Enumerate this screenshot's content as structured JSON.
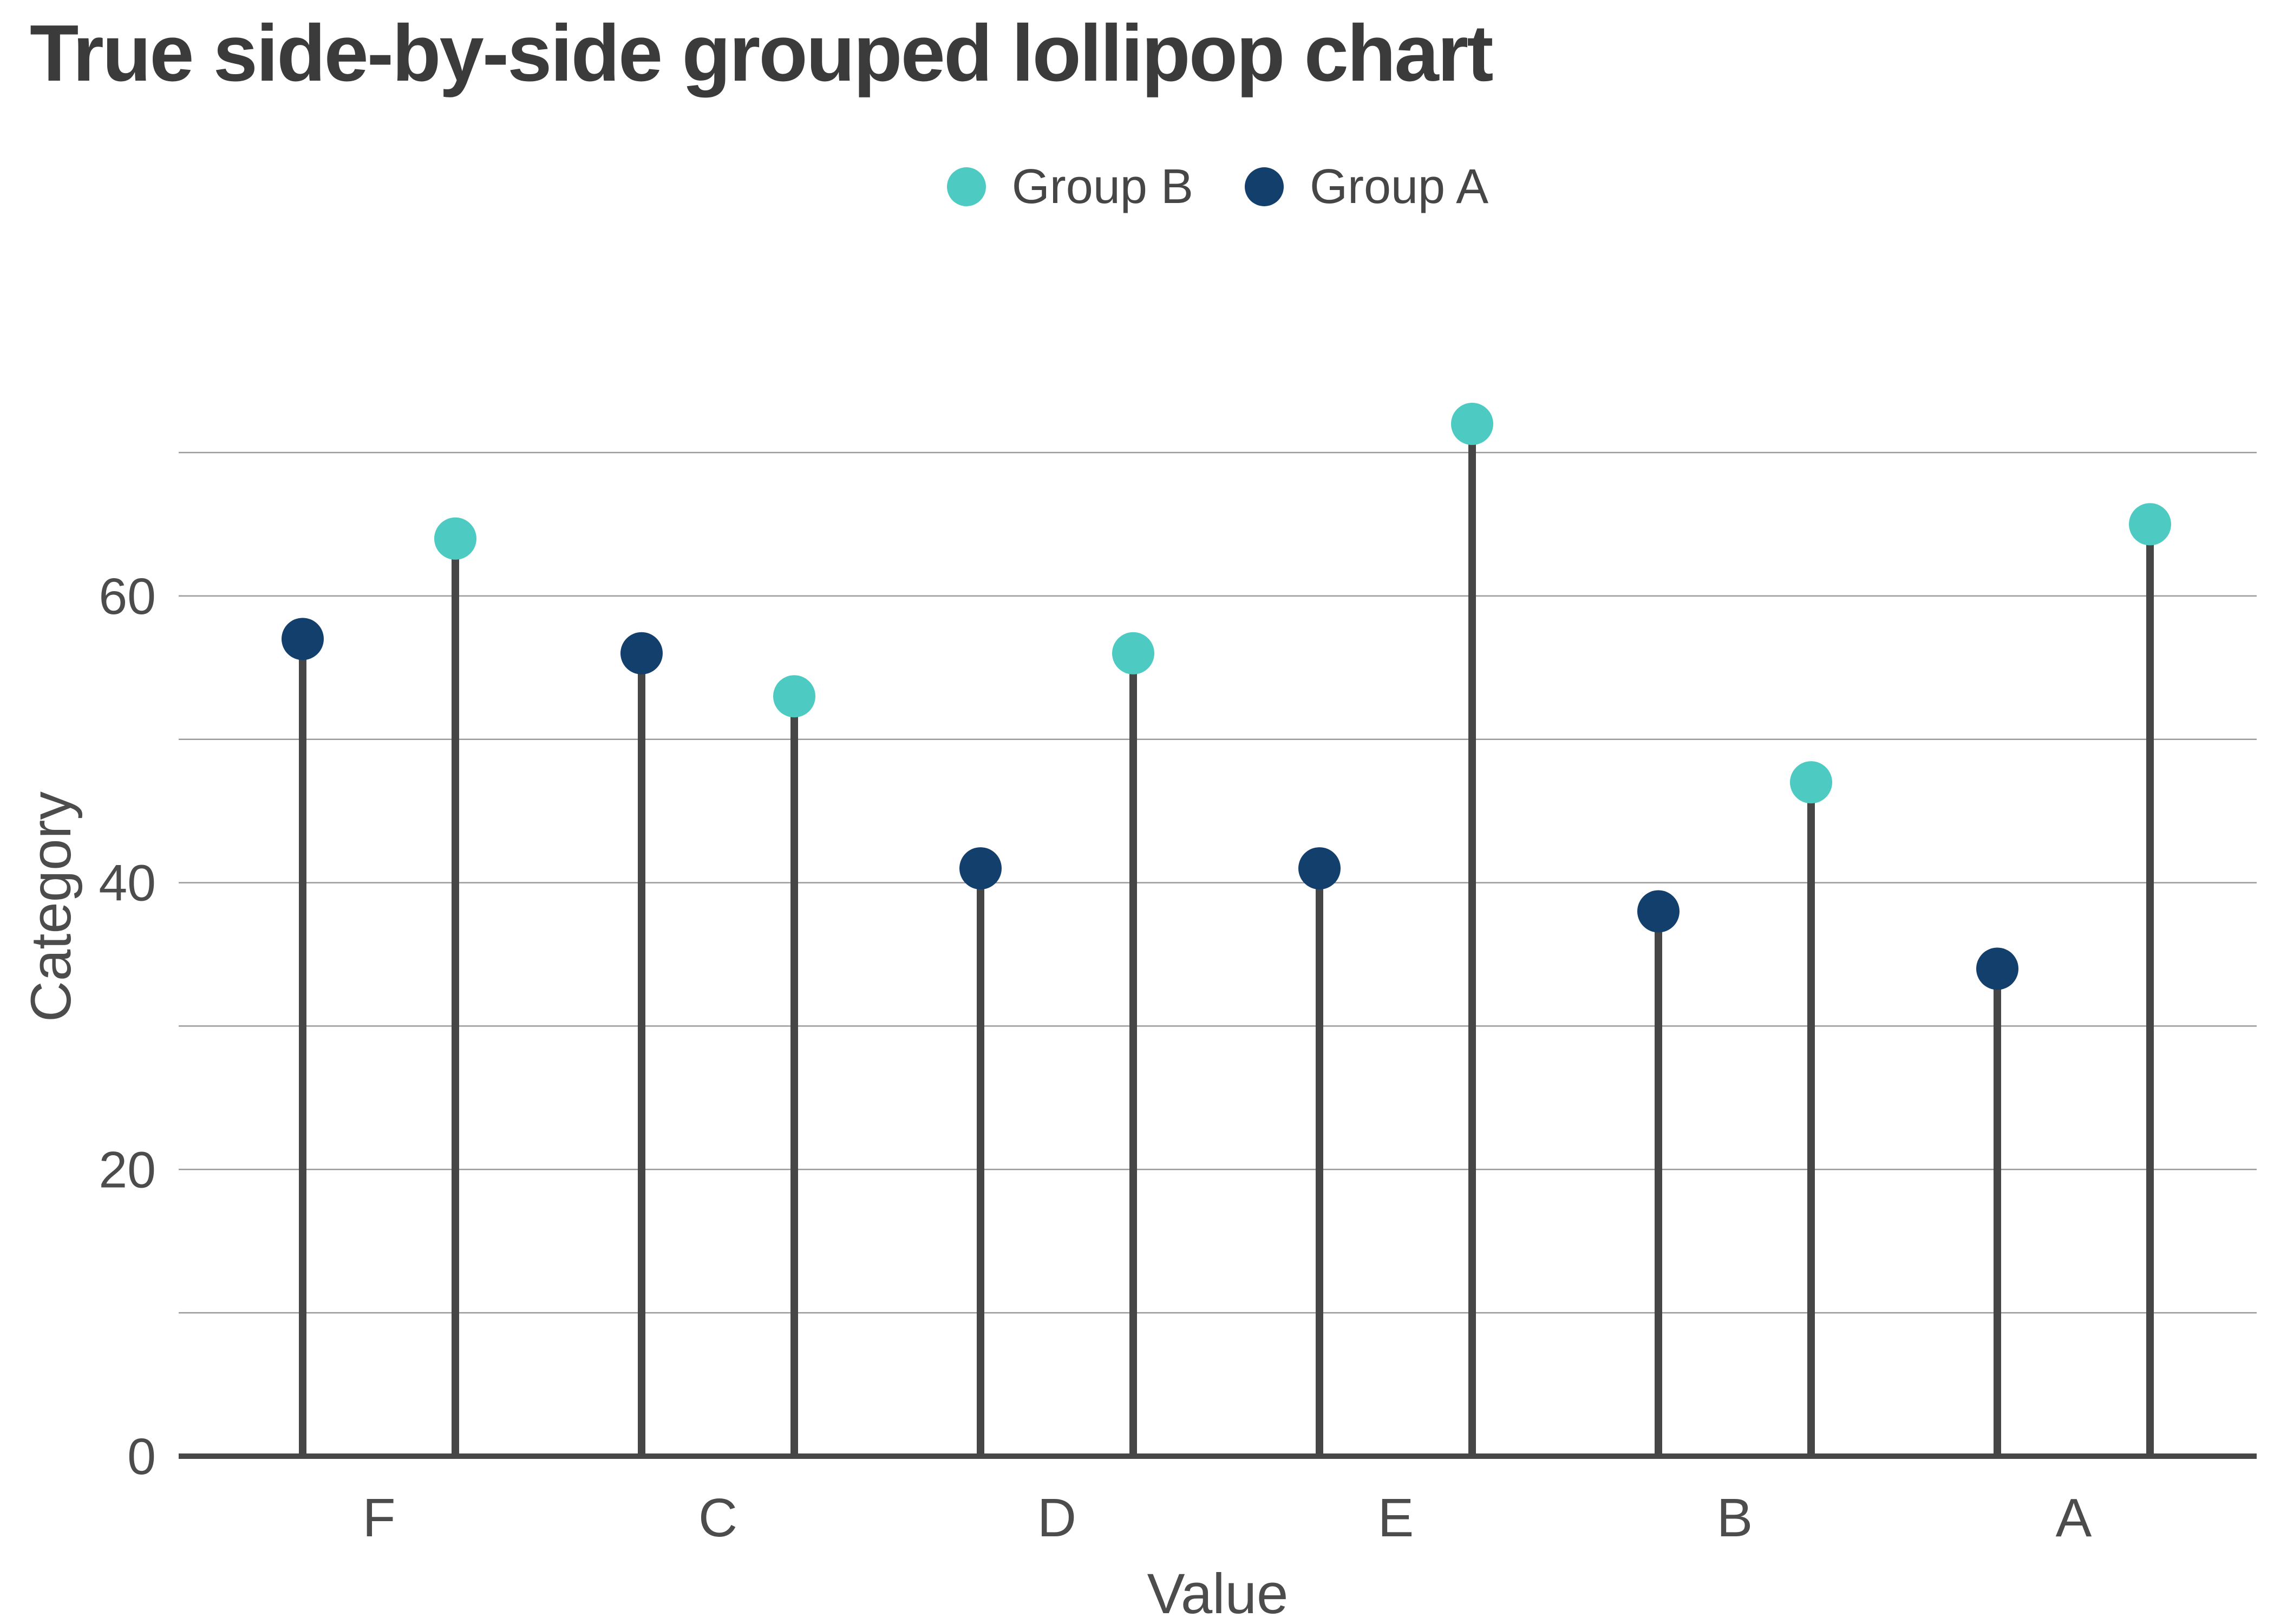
{
  "title": "True side-by-side grouped lollipop chart",
  "legend": {
    "items": [
      {
        "label": "Group B",
        "color": "#4dcbc2"
      },
      {
        "label": "Group A",
        "color": "#123f6c"
      }
    ]
  },
  "chart_data": {
    "type": "lollipop",
    "variant": "grouped-side-by-side",
    "title": "True side-by-side grouped lollipop chart",
    "xlabel": "Value",
    "ylabel": "Category",
    "categories": [
      "F",
      "C",
      "D",
      "E",
      "B",
      "A"
    ],
    "series": [
      {
        "name": "Group B",
        "color": "#4dcbc2",
        "side": "right",
        "values": [
          64,
          53,
          56,
          72,
          47,
          65
        ]
      },
      {
        "name": "Group A",
        "color": "#123f6c",
        "side": "left",
        "values": [
          57,
          56,
          41,
          41,
          38,
          34
        ]
      }
    ],
    "yticks": [
      0,
      20,
      40,
      60
    ],
    "gridlines": [
      10,
      20,
      30,
      40,
      50,
      60,
      70
    ],
    "ylim": [
      0,
      73.5
    ],
    "grid": true,
    "legend_position": "top-center",
    "stem_color": "#464646",
    "axis_color": "#474747",
    "gridline_color": "#9a9a9a",
    "text_color": "#4c4c4c",
    "title_color": "#3b3b3b"
  }
}
